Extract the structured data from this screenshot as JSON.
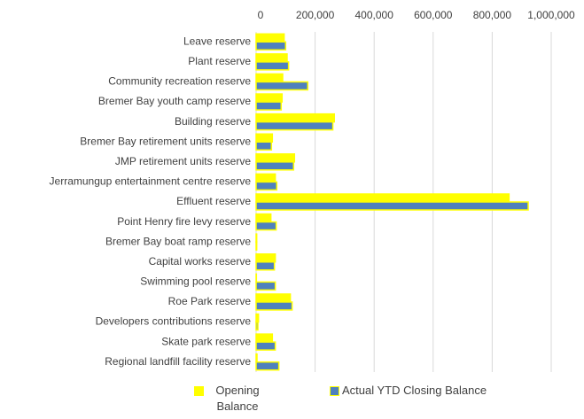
{
  "chart_data": {
    "type": "hbar",
    "categories": [
      "Leave reserve",
      "Plant reserve",
      "Community recreation reserve",
      "Bremer Bay youth camp reserve",
      "Building reserve",
      "Bremer Bay retirement units reserve",
      "JMP retirement units reserve",
      "Jerramungup entertainment centre reserve",
      "Effluent reserve",
      "Point Henry fire levy reserve",
      "Bremer Bay boat ramp reserve",
      "Capital works reserve",
      "Swimming pool reserve",
      "Roe Park reserve",
      "Developers contributions reserve",
      "Skate park reserve",
      "Regional landfill facility reserve"
    ],
    "series": [
      {
        "name": "Opening Balance",
        "color": "#ffff00",
        "values": [
          95000,
          105000,
          90000,
          88000,
          265000,
          55000,
          130000,
          65000,
          857000,
          50000,
          2000,
          65000,
          1000,
          116000,
          8000,
          55000,
          3000
        ]
      },
      {
        "name": "Actual YTD Closing Balance",
        "color": "#4f81bd",
        "values": [
          100000,
          110000,
          175000,
          85000,
          260000,
          52000,
          127000,
          70000,
          922000,
          68000,
          2000,
          62000,
          65000,
          122000,
          6000,
          65000,
          77000
        ]
      }
    ],
    "xlim": [
      0,
      1000000
    ],
    "xticks": [
      0,
      {
        "value": 200000,
        "label": "200,000"
      },
      {
        "value": 400000,
        "label": "400,000"
      },
      {
        "value": 600000,
        "label": "600,000"
      },
      {
        "value": 800000,
        "label": "800,000"
      },
      {
        "value": 1000000,
        "label": "1,000,000"
      }
    ],
    "grid": true
  }
}
